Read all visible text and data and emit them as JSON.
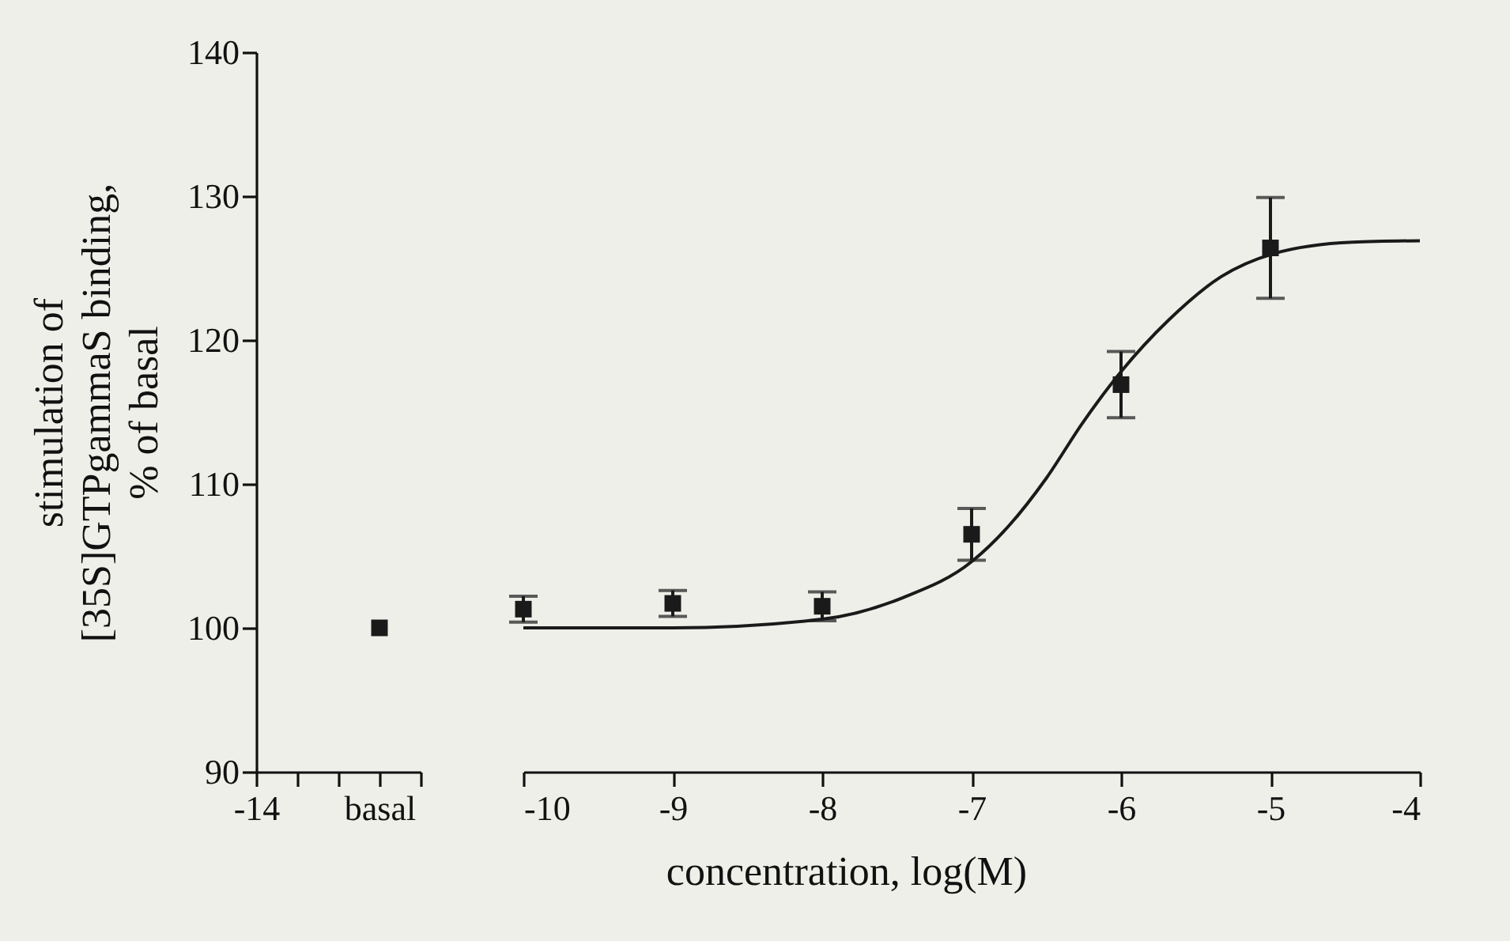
{
  "chart_data": [
    {
      "type": "scatter",
      "ylabel": "stimulation of\n[35S]GTPgammaS binding,\n% of basal",
      "categories": [
        "-14",
        null,
        null,
        "basal",
        null
      ],
      "ylim": [
        90,
        140
      ],
      "yticks": [
        90,
        100,
        110,
        120,
        130,
        140
      ],
      "series": [
        {
          "color": "#1a1a1a",
          "x": [
            "basal"
          ],
          "values": [
            100.0
          ],
          "marker": "square"
        }
      ]
    },
    {
      "type": "scatter",
      "xlabel": "concentration, log(M)",
      "xlim": [
        -10,
        -4
      ],
      "xticks": [
        -10,
        -9,
        -8,
        -7,
        -6,
        -5,
        -4
      ],
      "ylim": [
        90,
        140
      ],
      "tick_labels": "x",
      "line_style": "solid",
      "series": [
        {
          "color": "#1a1a1a",
          "x": [
            -10,
            -9,
            -8,
            -7,
            -6,
            -5
          ],
          "values": [
            101.3,
            101.7,
            101.5,
            106.5,
            116.9,
            126.4
          ],
          "errors": [
            0.9,
            0.9,
            1.0,
            1.8,
            2.3,
            3.5
          ],
          "marker": "square"
        },
        {
          "type": "line",
          "color": "#1a1a1a",
          "marker": "none",
          "x": [
            -10,
            -9,
            -8,
            -7.46,
            -7,
            -6.75,
            -6.5,
            -6.26,
            -6,
            -5.68,
            -5.33,
            -4.98,
            -4.45,
            -4
          ],
          "values": [
            100.0,
            100.0,
            100.6,
            102.1,
            104.6,
            107.1,
            110.4,
            114.2,
            117.8,
            121.4,
            124.4,
            126.0,
            126.8,
            126.9
          ]
        }
      ]
    }
  ]
}
